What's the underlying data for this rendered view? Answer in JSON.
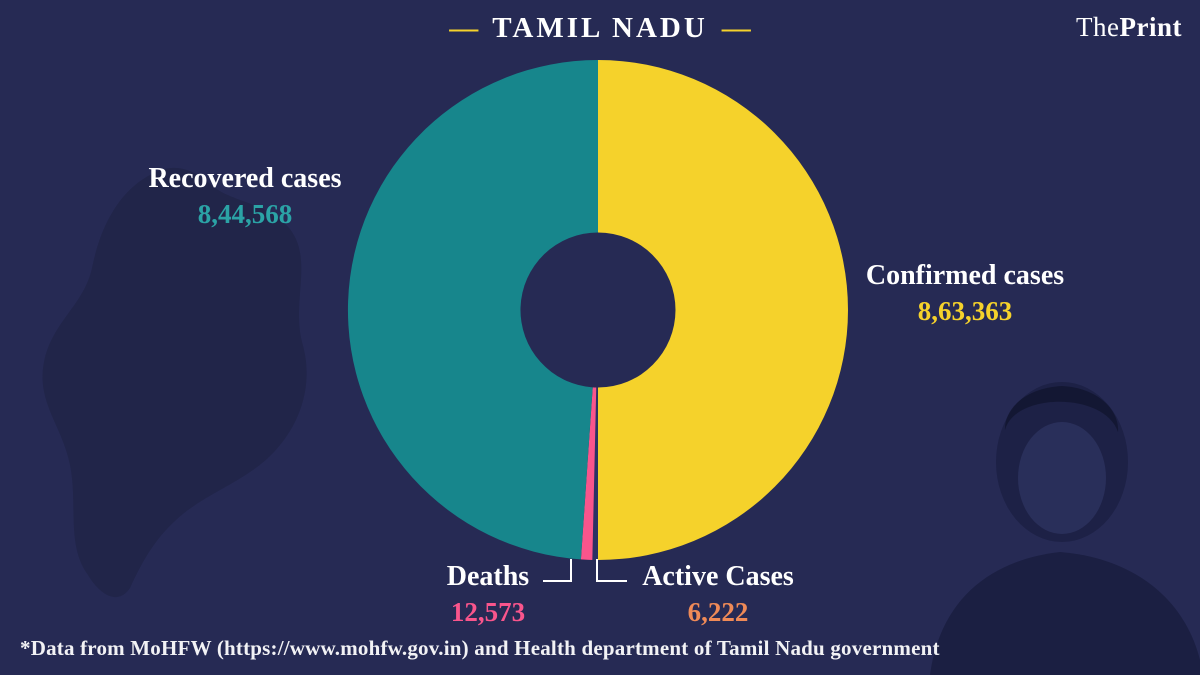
{
  "brand": {
    "the": "The",
    "print": "Print"
  },
  "title": {
    "text": "TAMIL NADU",
    "dash": "—"
  },
  "chart_data": {
    "type": "pie",
    "variant": "donut",
    "title": "TAMIL NADU",
    "start_angle_deg": 0,
    "direction": "clockwise",
    "inner_radius_ratio": 0.31,
    "background_color": "#262A54",
    "slices": [
      {
        "label": "Confirmed cases",
        "value": 863363,
        "display_value": "8,63,363",
        "color": "#F5D22B",
        "value_color": "#F5D22B"
      },
      {
        "label": "Active Cases",
        "value": 6222,
        "display_value": "6,222",
        "color": "#2C3163",
        "value_color": "#EF8A57"
      },
      {
        "label": "Deaths",
        "value": 12573,
        "display_value": "12,573",
        "color": "#F9558C",
        "value_color": "#F9558C"
      },
      {
        "label": "Recovered cases",
        "value": 844568,
        "display_value": "8,44,568",
        "color": "#17868C",
        "value_color": "#2BA3A6"
      }
    ]
  },
  "callouts": {
    "recovered": {
      "label": "Recovered cases",
      "value": "8,44,568"
    },
    "confirmed": {
      "label": "Confirmed cases",
      "value": "8,63,363"
    },
    "deaths": {
      "label": "Deaths",
      "value": "12,573"
    },
    "active": {
      "label": "Active Cases",
      "value": "6,222"
    }
  },
  "footer": {
    "note": "*Data from MoHFW (https://www.mohfw.gov.in)  and Health department of  Tamil Nadu government"
  }
}
